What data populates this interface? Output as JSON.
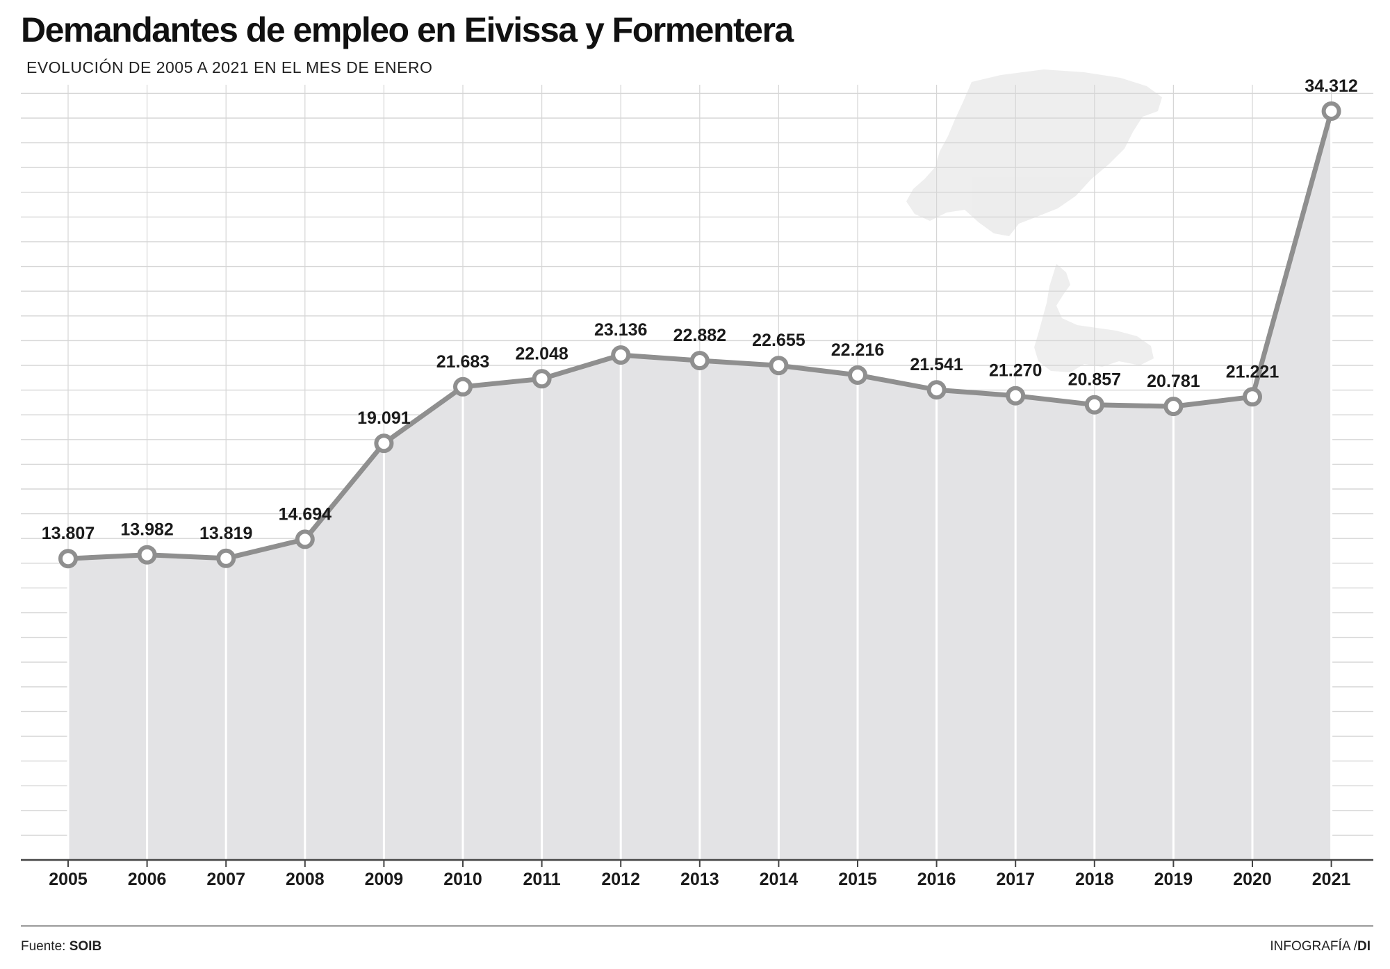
{
  "header": {
    "title": "Demandantes de empleo en Eivissa y Formentera",
    "subtitle": "EVOLUCIÓN DE 2005 A 2021 EN EL MES DE ENERO"
  },
  "footer": {
    "source_label": "Fuente:",
    "source_value": "SOIB",
    "credit_label": "INFOGRAFÍA /",
    "credit_value": "DI"
  },
  "colors": {
    "line": "#8f8f8f",
    "area": "#e3e3e5",
    "grid": "#d6d6d6",
    "marker_fill": "#ffffff",
    "label": "#1a1a1a",
    "map_silhouette": "#ececec"
  },
  "chart_data": {
    "type": "area",
    "title": "Demandantes de empleo en Eivissa y Formentera",
    "subtitle": "EVOLUCIÓN DE 2005 A 2021 EN EL MES DE ENERO",
    "xlabel": "",
    "ylabel": "",
    "categories": [
      "2005",
      "2006",
      "2007",
      "2008",
      "2009",
      "2010",
      "2011",
      "2012",
      "2013",
      "2014",
      "2015",
      "2016",
      "2017",
      "2018",
      "2019",
      "2020",
      "2021"
    ],
    "series": [
      {
        "values": [
          13807,
          13982,
          13819,
          14694,
          19091,
          21683,
          22048,
          23136,
          22882,
          22655,
          22216,
          21541,
          21270,
          20857,
          20781,
          21221,
          34312
        ],
        "labels": [
          "13.807",
          "13.982",
          "13.819",
          "14.694",
          "19.091",
          "21.683",
          "22.048",
          "23.136",
          "22.882",
          "22.655",
          "22.216",
          "21.541",
          "21.270",
          "20.857",
          "20.781",
          "21.221",
          "34.312"
        ]
      }
    ],
    "ylim": [
      0,
      35000
    ],
    "grid": true,
    "legend": "none",
    "markers": "hollow-circle"
  },
  "icons": {
    "background": "island-map-icon"
  }
}
